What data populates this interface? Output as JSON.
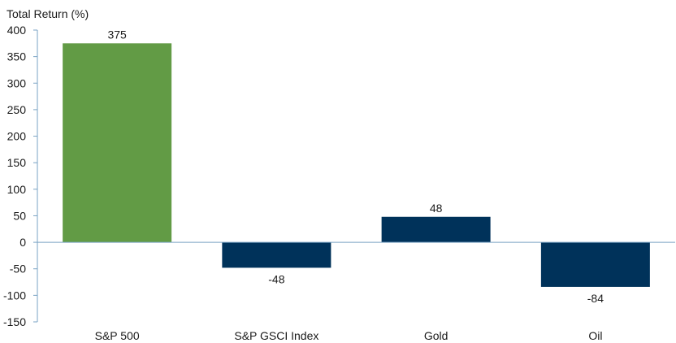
{
  "chart_data": {
    "type": "bar",
    "title": "",
    "xlabel": "",
    "ylabel": "Total Return (%)",
    "categories": [
      "S&P 500",
      "S&P GSCI Index",
      "Gold",
      "Oil"
    ],
    "values": [
      375,
      -48,
      48,
      -84
    ],
    "data_labels": [
      "375",
      "-48",
      "48",
      "-84"
    ],
    "colors": [
      "#629b45",
      "#00325a",
      "#00325a",
      "#00325a"
    ],
    "ylim": [
      -150,
      400
    ],
    "yticks": [
      400,
      350,
      300,
      250,
      200,
      150,
      100,
      50,
      0,
      -50,
      -100,
      -150
    ],
    "ytick_labels": [
      "400",
      "350",
      "300",
      "250",
      "200",
      "150",
      "100",
      "50",
      "0",
      "-50",
      "-100",
      "-150"
    ],
    "grid": false,
    "legend": "none"
  }
}
